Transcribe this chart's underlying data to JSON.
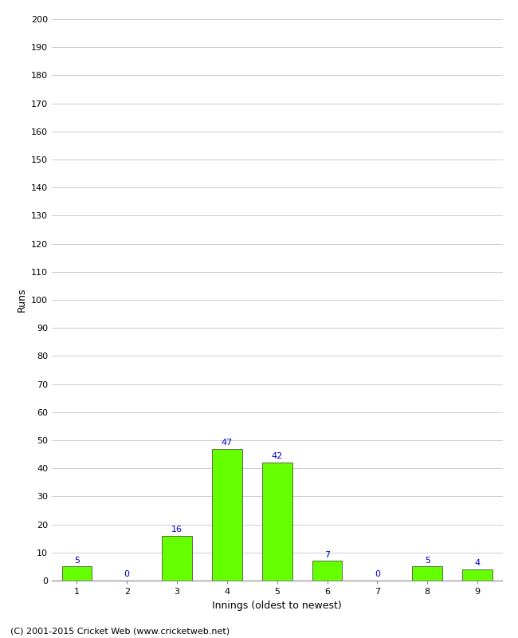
{
  "xlabel": "Innings (oldest to newest)",
  "ylabel": "Runs",
  "categories": [
    "1",
    "2",
    "3",
    "4",
    "5",
    "6",
    "7",
    "8",
    "9"
  ],
  "values": [
    5,
    0,
    16,
    47,
    42,
    7,
    0,
    5,
    4
  ],
  "bar_color": "#66ff00",
  "bar_edge_color": "#333333",
  "value_color": "#0000cc",
  "ylim": [
    0,
    200
  ],
  "yticks": [
    0,
    10,
    20,
    30,
    40,
    50,
    60,
    70,
    80,
    90,
    100,
    110,
    120,
    130,
    140,
    150,
    160,
    170,
    180,
    190,
    200
  ],
  "background_color": "#ffffff",
  "grid_color": "#cccccc",
  "footer": "(C) 2001-2015 Cricket Web (www.cricketweb.net)",
  "axis_label_fontsize": 9,
  "tick_fontsize": 8,
  "value_fontsize": 8,
  "footer_fontsize": 8
}
